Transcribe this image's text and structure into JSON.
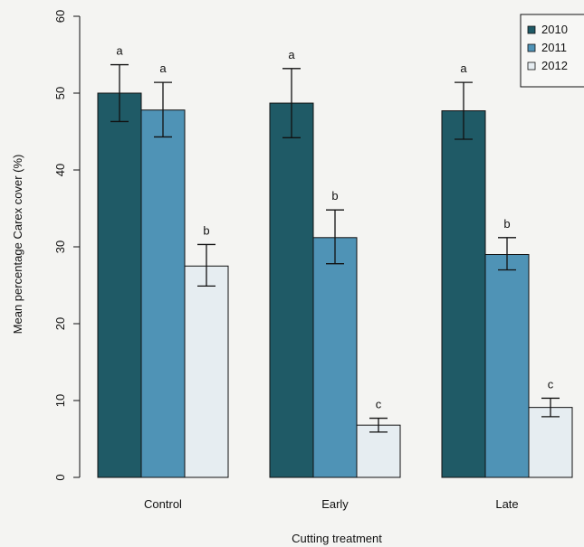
{
  "chart_data": {
    "type": "bar",
    "title": "",
    "xlabel": "Cutting treatment",
    "ylabel": "Mean percentage Carex cover (%)",
    "ylim": [
      0,
      60
    ],
    "yticks": [
      "0",
      "10",
      "20",
      "30",
      "40",
      "50",
      "60"
    ],
    "categories": [
      "Control",
      "Early",
      "Late"
    ],
    "series": [
      {
        "name": "2010",
        "color": "#1f5a66",
        "values": [
          50,
          48.7,
          47.7
        ],
        "err_low": [
          46.3,
          44.2,
          44.0
        ],
        "err_high": [
          53.7,
          53.2,
          51.4
        ],
        "letters": [
          "a",
          "a",
          "a"
        ]
      },
      {
        "name": "2011",
        "color": "#4f93b6",
        "values": [
          47.8,
          31.2,
          29.0
        ],
        "err_low": [
          44.3,
          27.8,
          27.0
        ],
        "err_high": [
          51.4,
          34.8,
          31.2
        ],
        "letters": [
          "a",
          "b",
          "b"
        ]
      },
      {
        "name": "2012",
        "color": "#e6edf1",
        "values": [
          27.5,
          6.8,
          9.1
        ],
        "err_low": [
          24.9,
          5.9,
          7.9
        ],
        "err_high": [
          30.3,
          7.7,
          10.3
        ],
        "letters": [
          "b",
          "c",
          "c"
        ]
      }
    ],
    "legend": {
      "position": "top-right",
      "labels": [
        "2010",
        "2011",
        "2012"
      ]
    },
    "grid": false
  }
}
